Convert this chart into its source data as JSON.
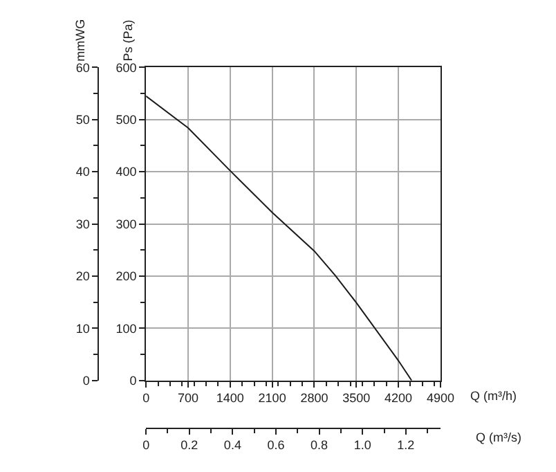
{
  "chart_data": {
    "type": "line",
    "xlabel": "Q (m³/h)",
    "ylabel": "Ps (Pa)",
    "y2label": "mmWG",
    "x2label": "Q (m³/s)",
    "x": [
      0,
      700,
      1400,
      2100,
      2800,
      3150,
      3500,
      4200,
      4420
    ],
    "series": [
      {
        "color": "#1a1a1a",
        "values": [
          545,
          484,
          402,
          322,
          248,
          201,
          149,
          38,
          0
        ]
      }
    ],
    "xlim": [
      0,
      4900
    ],
    "xticks": [
      0,
      700,
      1400,
      2100,
      2800,
      3500,
      4200,
      4900
    ],
    "ylim": [
      0,
      600
    ],
    "yticks": [
      0,
      100,
      200,
      300,
      400,
      500,
      600
    ],
    "y2lim": [
      0,
      60
    ],
    "y2ticks": [
      0,
      10,
      20,
      30,
      40,
      50,
      60
    ],
    "x2lim": [
      0,
      1.36
    ],
    "x2ticks": [
      0,
      {
        "value": 0.2,
        "label": "0.2"
      },
      {
        "value": 0.4,
        "label": "0.4"
      },
      {
        "value": 0.6,
        "label": "0.6"
      },
      {
        "value": 0.8,
        "label": "0.8"
      },
      {
        "value": 1.0,
        "label": "1.0"
      },
      {
        "value": 1.2,
        "label": "1.2"
      }
    ],
    "grid": true,
    "line_style": "solid"
  }
}
